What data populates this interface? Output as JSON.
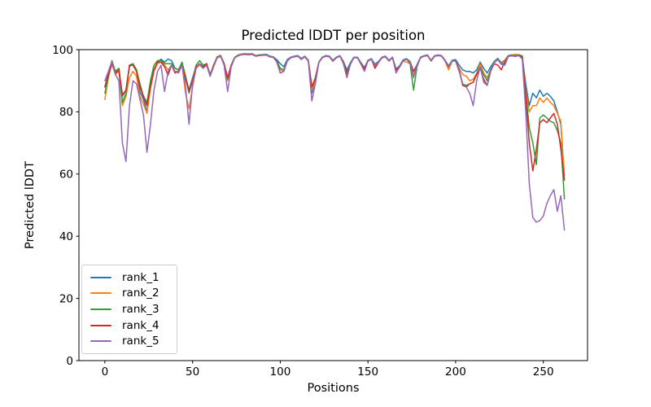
{
  "chart_data": {
    "type": "line",
    "title": "Predicted lDDT per position",
    "xlabel": "Positions",
    "ylabel": "Predicted lDDT",
    "xlim": [
      -14.8,
      275.2
    ],
    "ylim": [
      0,
      100
    ],
    "xticks": [
      0,
      50,
      100,
      150,
      200,
      250
    ],
    "yticks": [
      0,
      20,
      40,
      60,
      80,
      100
    ],
    "grid": false,
    "legend_position": "lower left",
    "x": [
      0,
      2,
      4,
      6,
      8,
      10,
      12,
      14,
      16,
      18,
      20,
      22,
      24,
      26,
      28,
      30,
      32,
      34,
      36,
      38,
      40,
      42,
      44,
      46,
      48,
      50,
      52,
      54,
      56,
      58,
      60,
      62,
      64,
      66,
      68,
      70,
      72,
      74,
      76,
      78,
      80,
      82,
      84,
      86,
      88,
      90,
      92,
      94,
      96,
      98,
      100,
      102,
      104,
      106,
      108,
      110,
      112,
      114,
      116,
      118,
      120,
      122,
      124,
      126,
      128,
      130,
      132,
      134,
      136,
      138,
      140,
      142,
      144,
      146,
      148,
      150,
      152,
      154,
      156,
      158,
      160,
      162,
      164,
      166,
      168,
      170,
      172,
      174,
      176,
      178,
      180,
      182,
      184,
      186,
      188,
      190,
      192,
      194,
      196,
      198,
      200,
      202,
      204,
      206,
      208,
      210,
      212,
      214,
      216,
      218,
      220,
      222,
      224,
      226,
      228,
      230,
      232,
      234,
      236,
      238,
      240,
      242,
      244,
      246,
      248,
      250,
      252,
      254,
      256,
      258,
      260,
      262
    ],
    "series": [
      {
        "name": "rank_1",
        "color": "#1f77b4",
        "values": [
          88,
          92.5,
          96,
          93,
          94,
          85,
          87,
          94.5,
          95.5,
          93.5,
          86.5,
          84,
          80,
          88,
          93.5,
          96,
          97,
          96,
          97,
          96.5,
          94,
          93.5,
          95.5,
          91.5,
          87,
          91,
          94.5,
          95.5,
          94.5,
          95.5,
          92,
          95,
          97.5,
          98,
          95.5,
          91,
          95,
          97.5,
          98.2,
          98.5,
          98.7,
          98.5,
          98.7,
          98.1,
          98.3,
          98.4,
          98.5,
          97.9,
          97.7,
          96.8,
          95.5,
          94.5,
          96.8,
          97.6,
          97.9,
          98.1,
          97.2,
          97.9,
          96.6,
          86,
          90,
          96,
          97.6,
          98.1,
          97.9,
          96.6,
          97.6,
          98.1,
          96.2,
          93.5,
          95.8,
          97.6,
          97.6,
          95.8,
          94.2,
          96.6,
          97.1,
          95.3,
          96.2,
          97.6,
          97.9,
          96.6,
          97.6,
          93.8,
          94.8,
          96.7,
          97.1,
          96.2,
          93,
          95.2,
          97.6,
          98.1,
          98.3,
          96.6,
          98.1,
          98.3,
          98.1,
          96.6,
          94.8,
          96.6,
          96.8,
          95,
          93.5,
          93,
          93,
          92.5,
          93.5,
          96,
          94,
          92.5,
          94.5,
          96.2,
          97.2,
          95.8,
          96.6,
          98.1,
          98.3,
          98.1,
          98.4,
          97.6,
          89,
          82,
          86,
          84.5,
          87,
          85,
          86,
          85,
          83.5,
          80,
          76,
          59.5
        ]
      },
      {
        "name": "rank_2",
        "color": "#ff7f0e",
        "values": [
          84,
          91,
          95.5,
          92,
          93,
          82,
          85,
          91,
          93,
          91.5,
          85,
          82.5,
          79.5,
          87.5,
          93,
          95.5,
          96,
          95,
          93.5,
          95,
          93,
          93,
          95,
          86,
          81,
          88,
          94,
          95,
          94,
          95,
          91.5,
          94.5,
          97.3,
          97.8,
          95,
          90,
          94.5,
          97.3,
          98,
          98.4,
          98.5,
          98.4,
          98.5,
          97.9,
          98.1,
          98.2,
          98.3,
          97.7,
          97.5,
          96.2,
          93.5,
          93,
          96.3,
          97.4,
          97.7,
          97.9,
          96.8,
          97.7,
          96.2,
          87,
          90,
          95.8,
          97.4,
          97.9,
          97.7,
          96.2,
          97.4,
          97.9,
          95.5,
          92.5,
          95.3,
          97.4,
          97.4,
          95.3,
          93.8,
          96.3,
          96.9,
          94.8,
          95.8,
          97.4,
          97.7,
          96.3,
          97.4,
          93.3,
          94.3,
          96.3,
          96,
          95.5,
          92,
          94.8,
          97.4,
          97.9,
          98.1,
          96.3,
          97.9,
          98.1,
          97.9,
          96.3,
          93.5,
          96.3,
          96.3,
          94,
          92,
          91.5,
          90,
          90.5,
          92.5,
          95.5,
          92.5,
          91,
          93.5,
          96,
          97,
          95.5,
          96.4,
          98,
          98.2,
          98.5,
          98.3,
          98,
          87,
          80,
          82,
          82,
          84.5,
          83,
          84.5,
          83,
          82,
          79.5,
          77,
          58.5
        ]
      },
      {
        "name": "rank_3",
        "color": "#2ca02c",
        "values": [
          86,
          91.5,
          96.5,
          93,
          94,
          83,
          86,
          95,
          95.5,
          93.5,
          89,
          85,
          83,
          90,
          95,
          96.5,
          96.5,
          95.5,
          95.5,
          95.5,
          94,
          93.5,
          96,
          91.5,
          86,
          90.5,
          95,
          96.5,
          95,
          95.5,
          92,
          95,
          97.7,
          98.2,
          95.5,
          90.5,
          95,
          97.5,
          98.3,
          98.6,
          98.7,
          98.6,
          98.7,
          98.1,
          98.3,
          98.4,
          98.5,
          97.9,
          97.7,
          96.5,
          94,
          93.5,
          96.5,
          97.5,
          97.8,
          98,
          97,
          97.8,
          96.5,
          88,
          91,
          96,
          97.5,
          98,
          97.8,
          96.5,
          97.5,
          98,
          96,
          93,
          95.5,
          97.5,
          97.5,
          95.5,
          94,
          96.5,
          97,
          95,
          96,
          97.5,
          97.8,
          96.5,
          97.5,
          93.5,
          94.5,
          96.5,
          97,
          95.5,
          87,
          94.5,
          97.5,
          98,
          98.2,
          96.5,
          98,
          98.2,
          98,
          96.5,
          94.5,
          96.5,
          96.5,
          93.5,
          89,
          88.5,
          89,
          89.5,
          92,
          94.5,
          92,
          90,
          93.5,
          96,
          97,
          95.5,
          95.5,
          98,
          98.2,
          98,
          98.3,
          98,
          86,
          75,
          70,
          63,
          78,
          79,
          78,
          77,
          76.5,
          74,
          70,
          52
        ]
      },
      {
        "name": "rank_4",
        "color": "#d62728",
        "values": [
          88,
          92,
          95.5,
          92.5,
          93.5,
          85.5,
          87,
          95,
          95,
          93,
          88,
          85,
          82,
          88,
          93.5,
          96,
          96,
          94.5,
          91.8,
          95,
          92.5,
          93,
          95,
          90.5,
          86.5,
          90,
          94.5,
          95.5,
          94.5,
          95.5,
          91.5,
          95,
          97.5,
          98,
          95.5,
          91,
          95,
          97.4,
          98.1,
          98.4,
          98.5,
          98.4,
          98.5,
          97.9,
          98.1,
          98.2,
          98.3,
          97.7,
          97.5,
          96.3,
          92.5,
          93,
          96.4,
          97.4,
          97.7,
          97.9,
          96.9,
          97.7,
          96.4,
          88,
          90.5,
          95.9,
          97.4,
          97.9,
          97.7,
          96.4,
          97.4,
          97.9,
          95.8,
          92,
          95.4,
          97.4,
          97.4,
          95.4,
          93.9,
          96.4,
          96.9,
          94,
          95.9,
          97.4,
          97.7,
          96.4,
          97.4,
          93.4,
          94.4,
          96.4,
          96.9,
          95.9,
          93,
          94.9,
          97.4,
          97.9,
          98.1,
          96.4,
          97.9,
          98.1,
          97.9,
          96.4,
          94.4,
          96.4,
          96.4,
          93.5,
          88.5,
          88,
          89,
          89.5,
          92,
          94,
          90.5,
          88.5,
          93,
          95.5,
          95,
          93.5,
          96,
          97.9,
          98.1,
          97.9,
          98.2,
          97.5,
          85,
          70,
          61,
          68,
          76.5,
          77.5,
          76.5,
          78,
          79.5,
          76,
          68,
          58
        ]
      },
      {
        "name": "rank_5",
        "color": "#9467bd",
        "values": [
          90,
          93,
          96.2,
          92,
          90,
          70,
          64,
          82,
          90,
          89,
          84,
          79,
          67,
          76,
          87,
          93,
          95,
          86.5,
          93,
          95,
          93,
          92.5,
          95,
          88,
          76,
          89,
          94,
          95.5,
          94,
          95,
          91.5,
          94.5,
          97.4,
          98,
          95,
          86.5,
          94.5,
          97.4,
          98.1,
          98.5,
          98.6,
          98.5,
          98.6,
          98,
          98.2,
          98.3,
          98.4,
          97.8,
          97.6,
          96,
          92.5,
          93,
          96.4,
          97.5,
          97.8,
          98,
          96.9,
          97.8,
          96.3,
          83.5,
          89,
          95.8,
          97.5,
          98,
          97.8,
          96.3,
          97.5,
          98,
          95.5,
          91,
          95.3,
          97.5,
          97.5,
          95.3,
          93,
          96.4,
          96.9,
          94.9,
          95.9,
          97.5,
          97.8,
          96.4,
          97.5,
          92.5,
          94.4,
          96.4,
          96.9,
          95.9,
          91,
          94.9,
          97.5,
          98,
          98.2,
          96.5,
          98,
          98.2,
          98,
          96.5,
          94.5,
          96.5,
          96.3,
          93,
          89,
          88,
          86,
          82,
          90,
          94.5,
          89.5,
          88.5,
          93,
          95.8,
          96.8,
          95.3,
          95,
          97.8,
          98,
          97.8,
          98.1,
          97,
          80,
          57,
          46,
          44.5,
          45,
          46.5,
          50.5,
          53,
          55,
          48,
          53,
          42
        ]
      }
    ]
  }
}
